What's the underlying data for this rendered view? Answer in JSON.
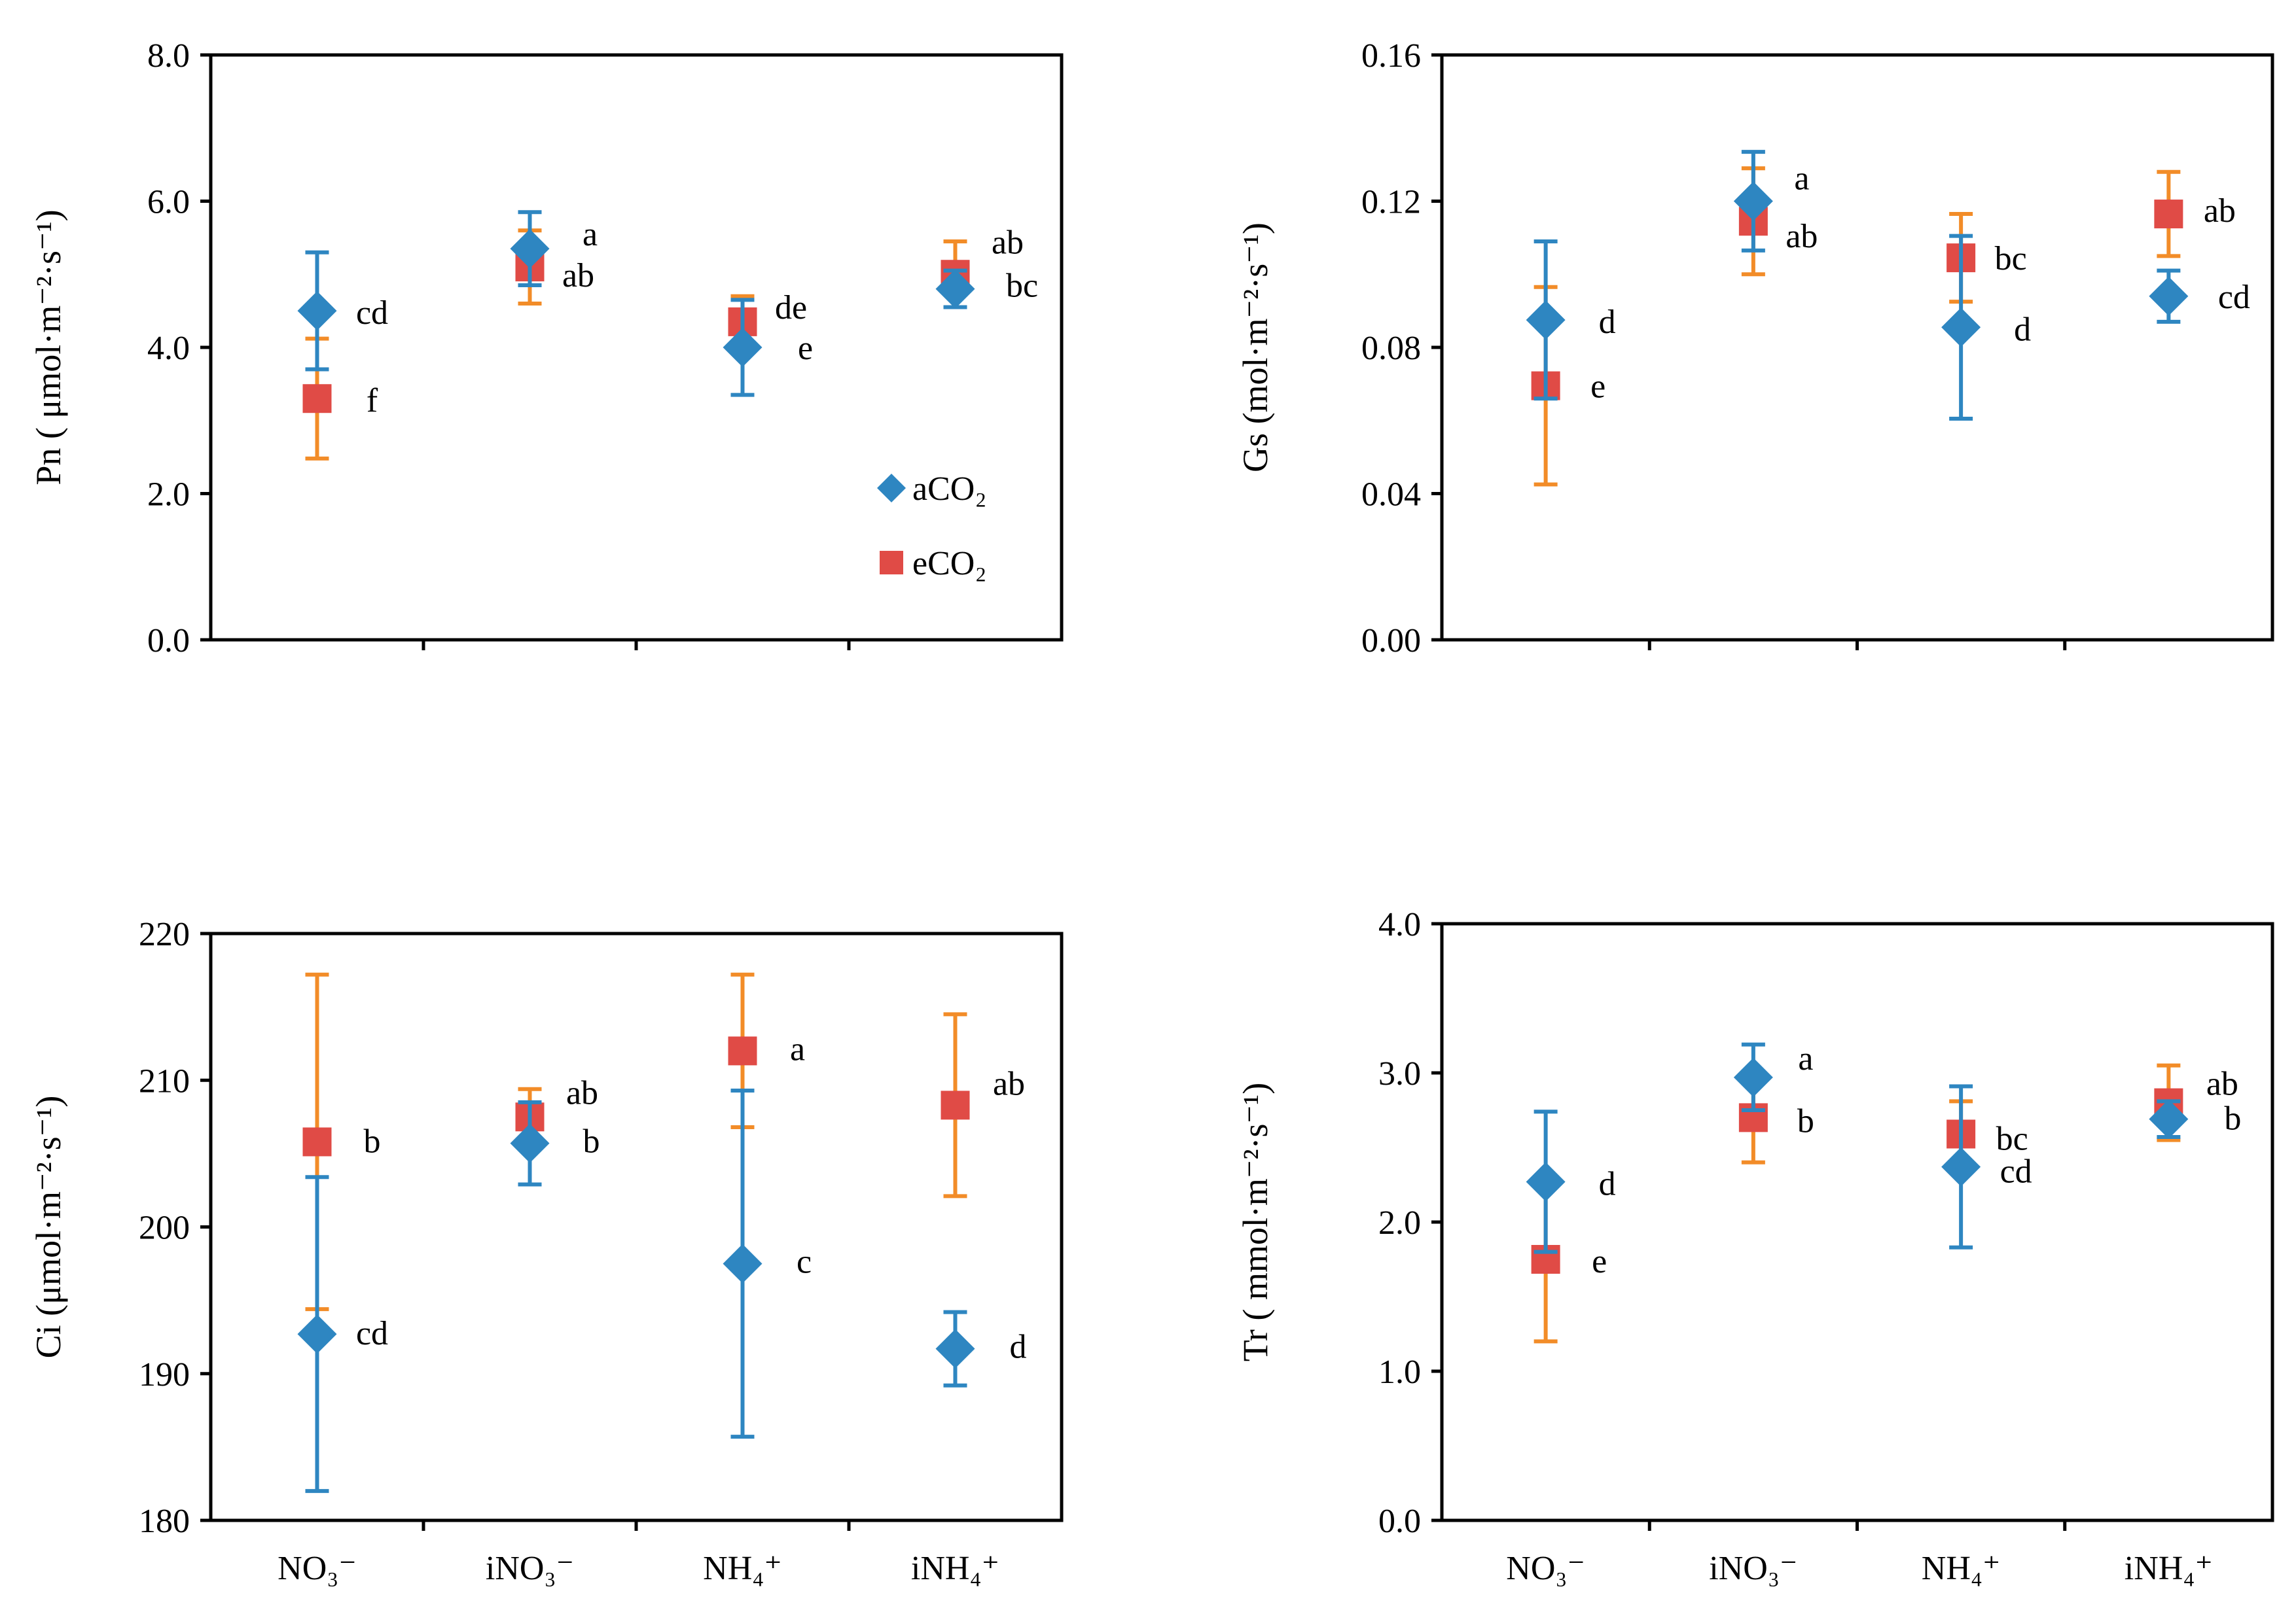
{
  "colors": {
    "aCO2": "#2E86C1",
    "eCO2": "#E04B46",
    "err_aCO2": "#2E86C1",
    "err_eCO2": "#F28C28",
    "axis": "#000000"
  },
  "legend": {
    "aCO2": "aCO₂",
    "eCO2": "eCO₂"
  },
  "chart_data": [
    {
      "type": "scatter",
      "id": "pn",
      "ylabel": "Pn ( μmol·m⁻²·s⁻¹)",
      "ylim": [
        0,
        8
      ],
      "yticks": [
        "0.0",
        "2.0",
        "4.0",
        "6.0",
        "8.0"
      ],
      "categories": [
        "NO₃⁻",
        "iNO₃⁻",
        "NH₄⁺",
        "iNH₄⁺"
      ],
      "show_categories": false,
      "legend": true,
      "series": [
        {
          "name": "aCO₂",
          "key": "aCO2",
          "values": [
            4.5,
            5.35,
            4.0,
            4.8
          ],
          "err": [
            0.8,
            0.5,
            0.65,
            0.25
          ],
          "labels": [
            "cd",
            "a",
            "e",
            "bc"
          ]
        },
        {
          "name": "eCO₂",
          "key": "eCO2",
          "values": [
            3.3,
            5.1,
            4.35,
            5.0
          ],
          "err": [
            0.82,
            0.5,
            0.35,
            0.45
          ],
          "labels": [
            "f",
            "ab",
            "de",
            "ab"
          ]
        }
      ]
    },
    {
      "type": "scatter",
      "id": "gs",
      "ylabel": "Gs (mol·m⁻²·s⁻¹)",
      "ylim": [
        0,
        0.16
      ],
      "yticks": [
        "0.00",
        "0.04",
        "0.08",
        "0.12",
        "0.16"
      ],
      "categories": [
        "NO₃⁻",
        "iNO₃⁻",
        "NH₄⁺",
        "iNH₄⁺"
      ],
      "show_categories": false,
      "legend": false,
      "series": [
        {
          "name": "aCO₂",
          "key": "aCO2",
          "values": [
            0.0875,
            0.12,
            0.0855,
            0.094
          ],
          "err": [
            0.0215,
            0.0135,
            0.025,
            0.007
          ],
          "labels": [
            "d",
            "a",
            "d",
            "cd"
          ]
        },
        {
          "name": "eCO₂",
          "key": "eCO2",
          "values": [
            0.0695,
            0.1145,
            0.1045,
            0.1165
          ],
          "err": [
            0.027,
            0.0145,
            0.012,
            0.0115
          ],
          "labels": [
            "e",
            "ab",
            "bc",
            "ab"
          ]
        }
      ]
    },
    {
      "type": "scatter",
      "id": "ci",
      "ylabel": "Ci (μmol·m⁻²·s⁻¹)",
      "ylim": [
        180,
        220
      ],
      "yticks": [
        "180",
        "190",
        "200",
        "210",
        "220"
      ],
      "categories": [
        "NO₃⁻",
        "iNO₃⁻",
        "NH₄⁺",
        "iNH₄⁺"
      ],
      "show_categories": true,
      "legend": false,
      "series": [
        {
          "name": "aCO₂",
          "key": "aCO2",
          "values": [
            192.7,
            205.7,
            197.5,
            191.7
          ],
          "err": [
            10.7,
            2.8,
            11.8,
            2.5
          ],
          "labels": [
            "cd",
            "b",
            "c",
            "d"
          ]
        },
        {
          "name": "eCO₂",
          "key": "eCO2",
          "values": [
            205.8,
            207.5,
            212.0,
            208.3
          ],
          "err": [
            11.4,
            1.9,
            5.2,
            6.2
          ],
          "labels": [
            "b",
            "ab",
            "a",
            "ab"
          ]
        }
      ]
    },
    {
      "type": "scatter",
      "id": "tr",
      "ylabel": "Tr ( mmol·m⁻²·s⁻¹)",
      "ylim": [
        0,
        4
      ],
      "yticks": [
        "0.0",
        "1.0",
        "2.0",
        "3.0",
        "4.0"
      ],
      "categories": [
        "NO₃⁻",
        "iNO₃⁻",
        "NH₄⁺",
        "iNH₄⁺"
      ],
      "show_categories": true,
      "legend": false,
      "series": [
        {
          "name": "aCO₂",
          "key": "aCO2",
          "values": [
            2.27,
            2.97,
            2.37,
            2.69
          ],
          "err": [
            0.47,
            0.22,
            0.54,
            0.12
          ],
          "labels": [
            "d",
            "a",
            "cd",
            "b"
          ]
        },
        {
          "name": "eCO₂",
          "key": "eCO2",
          "values": [
            1.75,
            2.7,
            2.59,
            2.8
          ],
          "err": [
            0.55,
            0.3,
            0.22,
            0.25
          ],
          "labels": [
            "e",
            "b",
            "bc",
            "ab"
          ]
        }
      ]
    }
  ]
}
